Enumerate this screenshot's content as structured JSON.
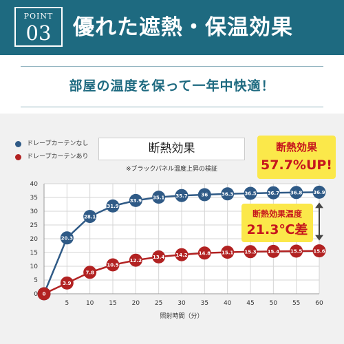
{
  "header": {
    "point_label": "POINT",
    "point_number": "03",
    "title": "優れた遮熱・保温効果"
  },
  "subtitle": "部屋の温度を保って一年中快適！",
  "colors": {
    "header_bg": "#1e6a80",
    "series_no_curtain": "#2f5a86",
    "series_with_curtain": "#b22222",
    "badge_bg": "#fbe84a",
    "badge_text": "#c6161d"
  },
  "chart_data": {
    "type": "line",
    "title": "断熱効果",
    "note": "※ブラックパネル温度上昇の検証",
    "xlabel": "照射時間（分）",
    "ylabel": "",
    "x": [
      0,
      5,
      10,
      15,
      20,
      25,
      30,
      35,
      40,
      45,
      50,
      55,
      60
    ],
    "x_ticks": [
      "5",
      "10",
      "15",
      "20",
      "25",
      "30",
      "35",
      "40",
      "45",
      "50",
      "55",
      "60"
    ],
    "y_ticks": [
      "0",
      "5",
      "10",
      "15",
      "20",
      "25",
      "30",
      "35",
      "40"
    ],
    "xlim": [
      0,
      60
    ],
    "ylim": [
      0,
      40
    ],
    "grid": true,
    "legend_position": "top-left",
    "series": [
      {
        "name": "ドレープカーテンなし",
        "color": "#2f5a86",
        "values": [
          0,
          20.3,
          28.1,
          31.9,
          33.9,
          35.1,
          35.7,
          36,
          36.3,
          36.5,
          36.7,
          36.8,
          36.9
        ],
        "labels": [
          "0",
          "20.3",
          "28.1",
          "31.9",
          "33.9",
          "35.1",
          "35.7",
          "36",
          "36.3",
          "36.5",
          "36.7",
          "36.8",
          "36.9"
        ]
      },
      {
        "name": "ドレープカーテンあり",
        "color": "#b22222",
        "values": [
          0,
          3.9,
          7.8,
          10.5,
          12.2,
          13.4,
          14.2,
          14.8,
          15.1,
          15.3,
          15.4,
          15.5,
          15.6
        ],
        "labels": [
          "0",
          "3.9",
          "7.8",
          "10.5",
          "12.2",
          "13.4",
          "14.2",
          "14.8",
          "15.1",
          "15.3",
          "15.4",
          "15.5",
          "15.6"
        ]
      }
    ],
    "annotations": [
      {
        "line1": "断熱効果",
        "line2": "57.7%UP!"
      },
      {
        "line1": "断熱効果温度",
        "line2": "21.3℃差"
      }
    ]
  }
}
